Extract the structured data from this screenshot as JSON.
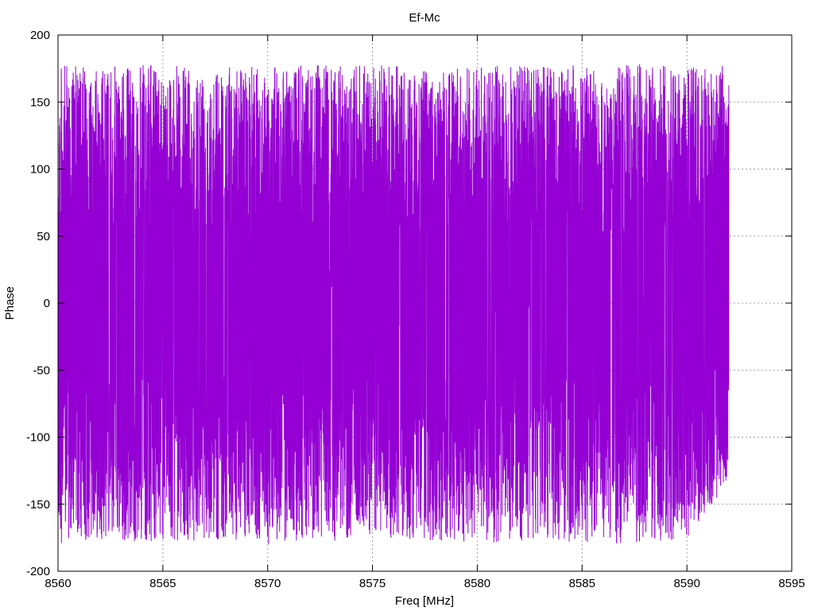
{
  "chart_data": {
    "type": "line",
    "title": "Ef-Mc",
    "xlabel": "Freq [MHz]",
    "ylabel": "Phase",
    "xlim": [
      8560,
      8595
    ],
    "ylim": [
      -200,
      200
    ],
    "x_ticks": [
      8560,
      8565,
      8570,
      8575,
      8580,
      8585,
      8590,
      8595
    ],
    "y_ticks": [
      -200,
      -150,
      -100,
      -50,
      0,
      50,
      100,
      150,
      200
    ],
    "grid": true,
    "line_color": "#9400d3",
    "series": [
      {
        "x_start": 8560,
        "x_end": 8592,
        "phase_range": [
          -180,
          180
        ],
        "envelope": {
          "x": [
            8560,
            8562,
            8564,
            8566,
            8568,
            8570,
            8572,
            8574,
            8576,
            8578,
            8580,
            8582,
            8584,
            8586,
            8588,
            8590,
            8592
          ],
          "upper": [
            178,
            176,
            178,
            177,
            178,
            176,
            178,
            177,
            178,
            176,
            178,
            177,
            178,
            176,
            179,
            177,
            177
          ],
          "lower": [
            -180,
            -176,
            -178,
            -178,
            -176,
            -180,
            -177,
            -178,
            -176,
            -178,
            -180,
            -177,
            -178,
            -180,
            -178,
            -176,
            -135
          ]
        }
      }
    ]
  }
}
